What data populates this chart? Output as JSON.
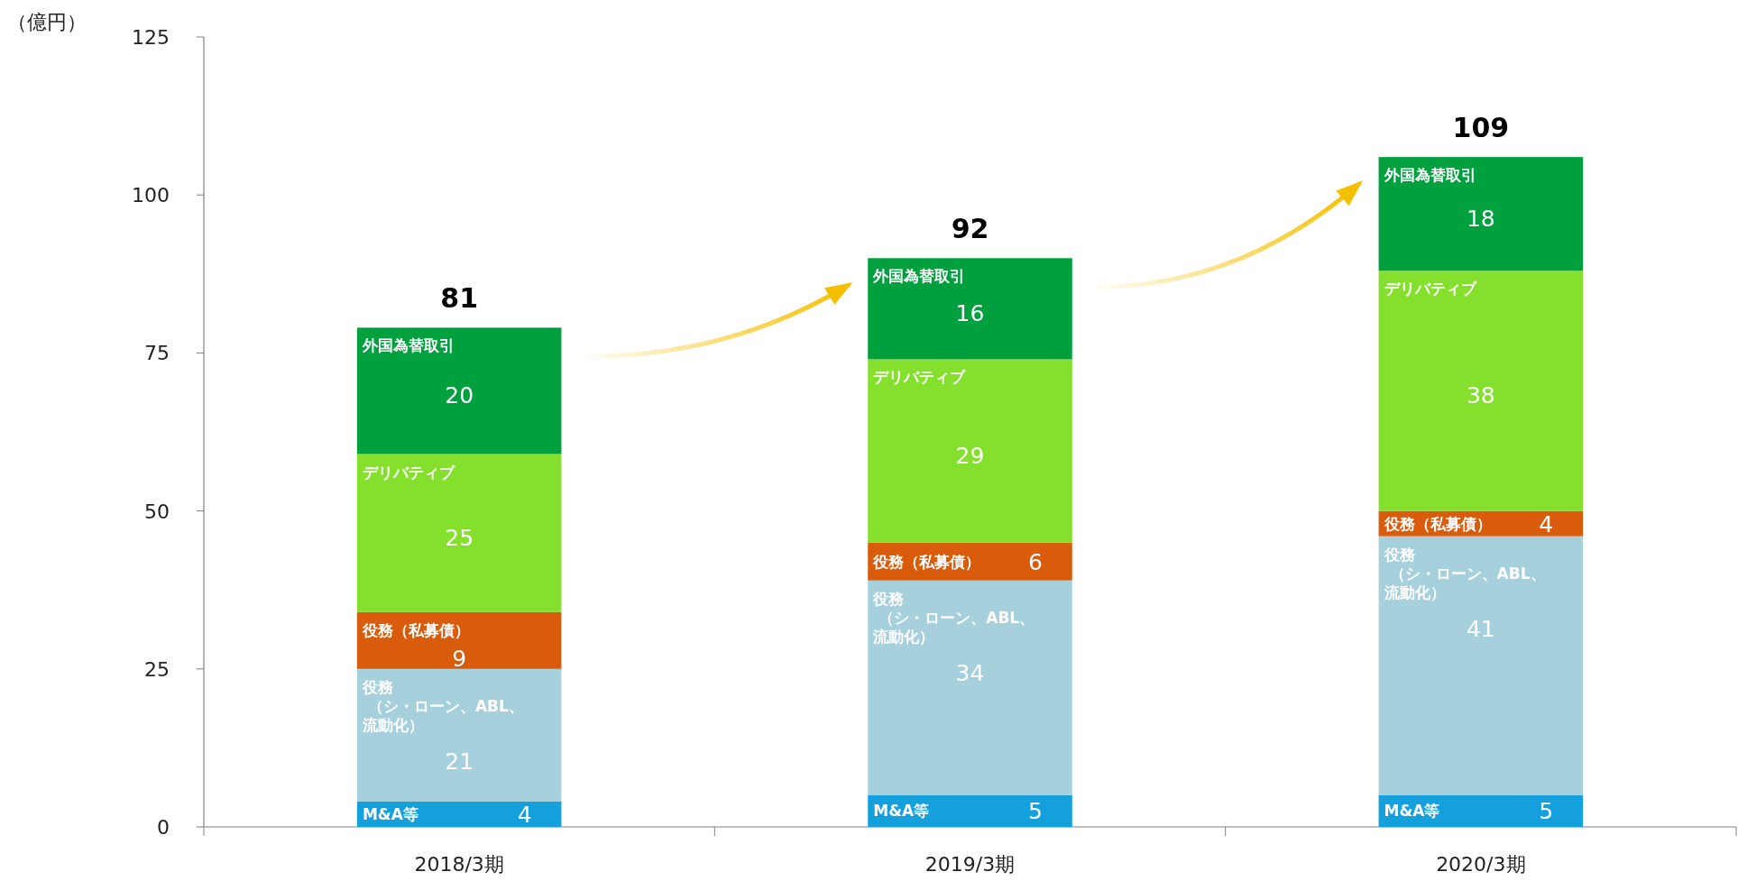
{
  "chart_data": {
    "type": "bar",
    "stacked": true,
    "ylabel": "（億円）",
    "categories": [
      "2018/3期",
      "2019/3期",
      "2020/3期"
    ],
    "series": [
      {
        "name": "M&A等",
        "color": "#14a0dc",
        "values": [
          4,
          5,
          5
        ]
      },
      {
        "name": "役務（シ・ローン、ABL、流動化）",
        "color": "#a6d0dc",
        "values": [
          21,
          34,
          41
        ]
      },
      {
        "name": "役務（私募債）",
        "color": "#d95c0c",
        "values": [
          9,
          6,
          4
        ]
      },
      {
        "name": "デリバティブ",
        "color": "#84e02c",
        "values": [
          25,
          29,
          38
        ]
      },
      {
        "name": "外国為替取引",
        "color": "#00a03e",
        "values": [
          20,
          16,
          18
        ]
      }
    ],
    "totals": [
      "81",
      "92",
      "109"
    ],
    "ylim": [
      0,
      125
    ],
    "yticks": [
      0,
      25,
      50,
      75,
      100,
      125
    ],
    "data_labels": true,
    "grid": false,
    "legend": false
  }
}
